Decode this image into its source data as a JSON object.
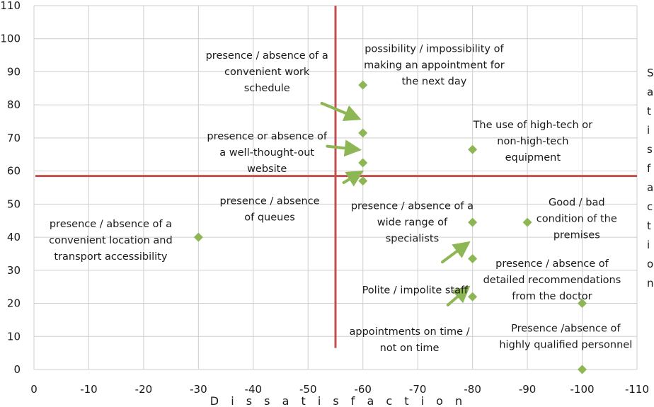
{
  "chart_data": {
    "type": "scatter",
    "title": "",
    "xlabel": "D i s s a t i s f a c t i o n",
    "ylabel": "",
    "xlim": [
      0,
      -110
    ],
    "ylim": [
      0,
      110
    ],
    "x_ticks": [
      0,
      -10,
      -20,
      -30,
      -40,
      -50,
      -60,
      -70,
      -80,
      -90,
      -100,
      -110
    ],
    "y_ticks": [
      0,
      10,
      20,
      30,
      40,
      50,
      60,
      70,
      80,
      90,
      100,
      110
    ],
    "grid": true,
    "marker_color": "#8db654",
    "reference_line_color": "#c0504d",
    "arrow_color": "#8db654",
    "reference_lines": {
      "x": -55,
      "y": 58.5
    },
    "points": [
      {
        "x": -60,
        "y": 86
      },
      {
        "x": -60,
        "y": 71.5
      },
      {
        "x": -60,
        "y": 62.5
      },
      {
        "x": -60,
        "y": 57
      },
      {
        "x": -30,
        "y": 40
      },
      {
        "x": -80,
        "y": 66.5
      },
      {
        "x": -80,
        "y": 44.5
      },
      {
        "x": -90,
        "y": 44.5
      },
      {
        "x": -80,
        "y": 33.5
      },
      {
        "x": -80,
        "y": 22
      },
      {
        "x": -100,
        "y": 20
      },
      {
        "x": -100,
        "y": 0
      }
    ],
    "annotations": [
      {
        "lines": [
          "presence / absence of a",
          "convenient work",
          "schedule"
        ],
        "x": -42.5,
        "y": 94
      },
      {
        "lines": [
          "possibility / impossibility of",
          "making an appointment for",
          "the next day"
        ],
        "x": -73,
        "y": 96
      },
      {
        "lines": [
          "presence or absence of",
          "a well-thought-out",
          "website"
        ],
        "x": -42.5,
        "y": 69.5
      },
      {
        "lines": [
          "The use of high-tech or",
          "non-high-tech",
          "equipment"
        ],
        "x": -91,
        "y": 73
      },
      {
        "lines": [
          "presence / absence",
          "of queues"
        ],
        "x": -43,
        "y": 50
      },
      {
        "lines": [
          "presence / absence of a",
          "convenient location and",
          "transport accessibility"
        ],
        "x": -14,
        "y": 43
      },
      {
        "lines": [
          "presence / absence of a",
          "wide range of",
          "specialists"
        ],
        "x": -69,
        "y": 48.5
      },
      {
        "lines": [
          "Good / bad",
          "condition of the",
          "premises"
        ],
        "x": -99,
        "y": 49.5
      },
      {
        "lines": [
          "presence / absence of",
          "detailed recommendations",
          "from the doctor"
        ],
        "x": -94.5,
        "y": 31
      },
      {
        "lines": [
          "Polite / impolite staff"
        ],
        "x": -69.5,
        "y": 23
      },
      {
        "lines": [
          "appointments on time /",
          "not on time"
        ],
        "x": -68.5,
        "y": 10.5
      },
      {
        "lines": [
          "Presence /absence of",
          "highly qualified personnel"
        ],
        "x": -97,
        "y": 11.5
      }
    ],
    "arrows": [
      {
        "from": [
          -52.5,
          80.5
        ],
        "to": [
          -59,
          76
        ]
      },
      {
        "from": [
          -53.5,
          67.5
        ],
        "to": [
          -59,
          66.5
        ]
      },
      {
        "from": [
          -56.5,
          56.5
        ],
        "to": [
          -59.5,
          59.5
        ]
      },
      {
        "from": [
          -74.5,
          32.5
        ],
        "to": [
          -79,
          38
        ]
      },
      {
        "from": [
          -75.5,
          19.5
        ],
        "to": [
          -79,
          24.5
        ]
      }
    ],
    "side_text": [
      "S",
      "a",
      "t",
      "i",
      "s",
      "f",
      "a",
      "c",
      "t",
      "i",
      "o",
      "n"
    ]
  }
}
